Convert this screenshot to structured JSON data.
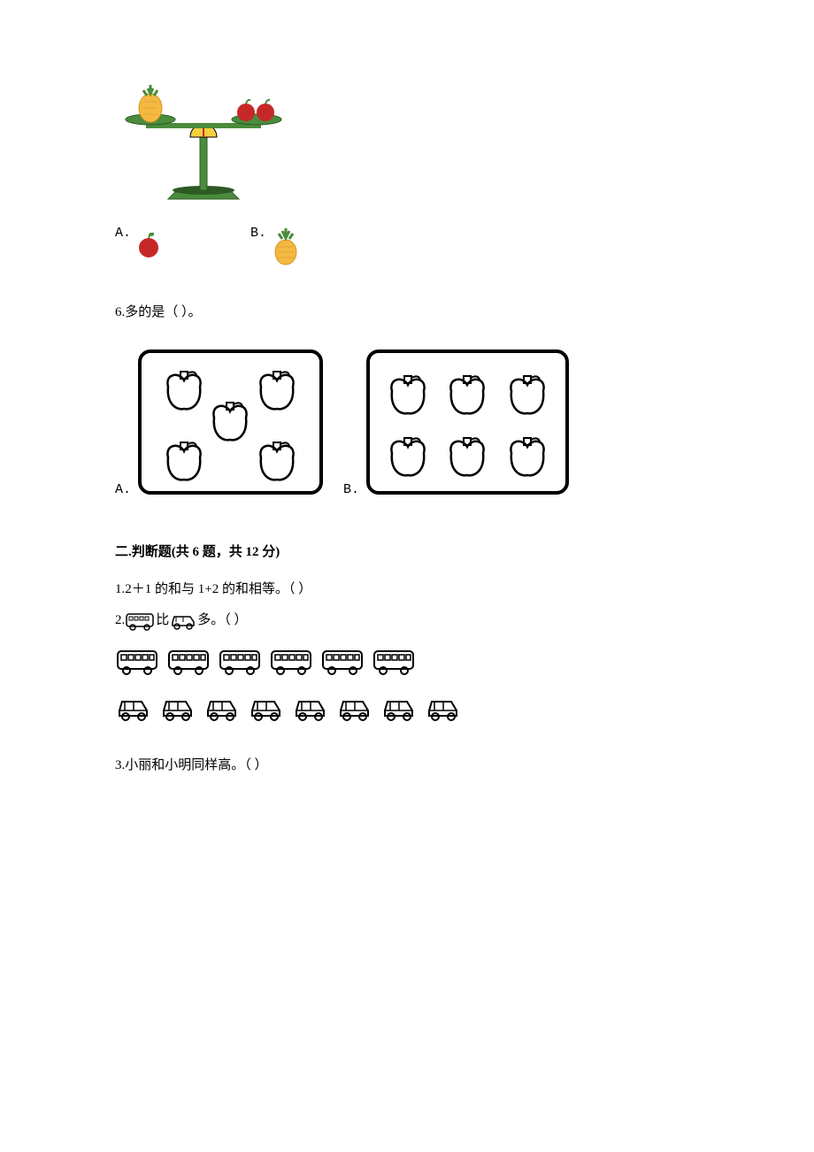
{
  "q5": {
    "options": {
      "a_label": "A.",
      "b_label": "B."
    }
  },
  "q6": {
    "text": "6.多的是（     ）。",
    "box_a_apples": 5,
    "box_b_apples": 6,
    "options": {
      "a_label": "A.",
      "b_label": "B."
    }
  },
  "section2": {
    "header": "二.判断题(共 6 题，共 12 分)"
  },
  "judge": {
    "q1": "1.2＋1 的和与 1+2 的和相等。（     ）",
    "q2_prefix": "2.",
    "q2_mid": "比",
    "q2_suffix": "多。（     ）",
    "q2_buses_count": 6,
    "q2_cars_count": 8,
    "q3": "3.小丽和小明同样高。（     ）"
  },
  "colors": {
    "pineapple_body": "#f4b942",
    "pineapple_leaf": "#4a8c3c",
    "apple_body": "#c62828",
    "apple_leaf": "#4a8c3c",
    "scale_green": "#4a8c3c",
    "scale_dark": "#2d5a24",
    "outline": "#000000",
    "box_border": "#000000"
  }
}
